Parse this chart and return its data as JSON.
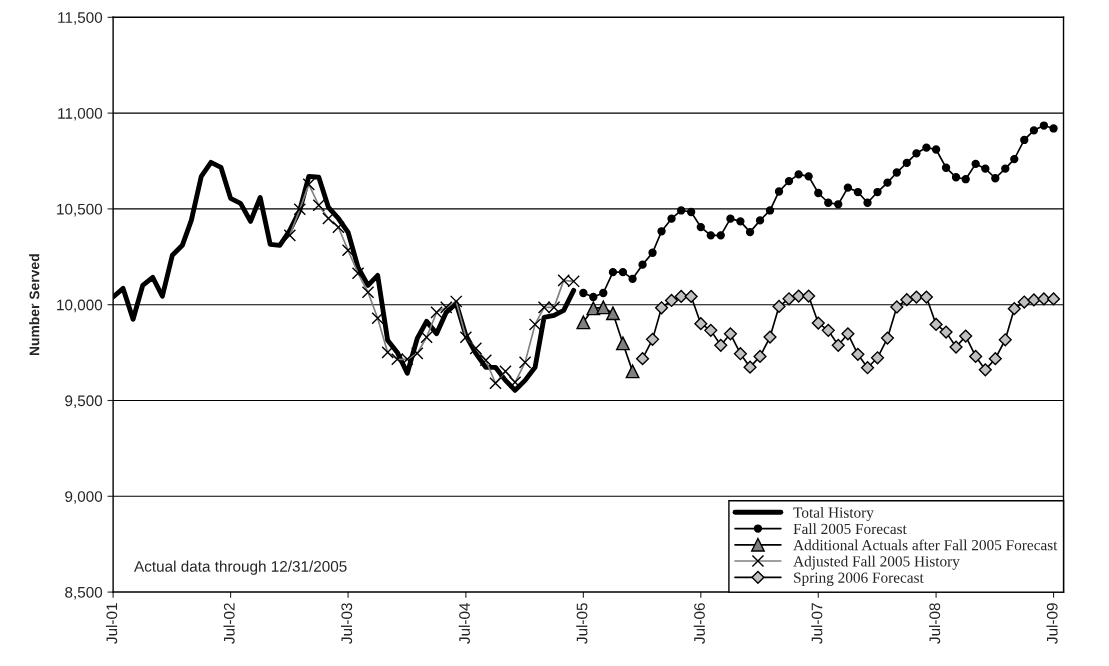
{
  "chart_data": {
    "type": "line",
    "ylabel": "Number Served",
    "ylim": [
      8500,
      11500
    ],
    "yticks": [
      {
        "value": 8500,
        "label": "8,500"
      },
      {
        "value": 9000,
        "label": "9,000"
      },
      {
        "value": 9500,
        "label": "9,500"
      },
      {
        "value": 10000,
        "label": "10,000"
      },
      {
        "value": 10500,
        "label": "10,500"
      },
      {
        "value": 11000,
        "label": "11,000"
      },
      {
        "value": 11500,
        "label": "11,500"
      }
    ],
    "xlim": [
      "2001-07",
      "2009-08"
    ],
    "xticks": [
      {
        "value": "2001-07",
        "label": "Jul-01"
      },
      {
        "value": "2002-07",
        "label": "Jul-02"
      },
      {
        "value": "2003-07",
        "label": "Jul-03"
      },
      {
        "value": "2004-07",
        "label": "Jul-04"
      },
      {
        "value": "2005-07",
        "label": "Jul-05"
      },
      {
        "value": "2006-07",
        "label": "Jul-06"
      },
      {
        "value": "2007-07",
        "label": "Jul-07"
      },
      {
        "value": "2008-07",
        "label": "Jul-08"
      },
      {
        "value": "2009-07",
        "label": "Jul-09"
      }
    ],
    "x": [
      "2001-07",
      "2001-08",
      "2001-09",
      "2001-10",
      "2001-11",
      "2001-12",
      "2002-01",
      "2002-02",
      "2002-03",
      "2002-04",
      "2002-05",
      "2002-06",
      "2002-07",
      "2002-08",
      "2002-09",
      "2002-10",
      "2002-11",
      "2002-12",
      "2003-01",
      "2003-02",
      "2003-03",
      "2003-04",
      "2003-05",
      "2003-06",
      "2003-07",
      "2003-08",
      "2003-09",
      "2003-10",
      "2003-11",
      "2003-12",
      "2004-01",
      "2004-02",
      "2004-03",
      "2004-04",
      "2004-05",
      "2004-06",
      "2004-07",
      "2004-08",
      "2004-09",
      "2004-10",
      "2004-11",
      "2004-12",
      "2005-01",
      "2005-02",
      "2005-03",
      "2005-04",
      "2005-05",
      "2005-06",
      "2005-07",
      "2005-08",
      "2005-09",
      "2005-10",
      "2005-11",
      "2005-12",
      "2006-01",
      "2006-02",
      "2006-03",
      "2006-04",
      "2006-05",
      "2006-06",
      "2006-07",
      "2006-08",
      "2006-09",
      "2006-10",
      "2006-11",
      "2006-12",
      "2007-01",
      "2007-02",
      "2007-03",
      "2007-04",
      "2007-05",
      "2007-06",
      "2007-07",
      "2007-08",
      "2007-09",
      "2007-10",
      "2007-11",
      "2007-12",
      "2008-01",
      "2008-02",
      "2008-03",
      "2008-04",
      "2008-05",
      "2008-06",
      "2008-07",
      "2008-08",
      "2008-09",
      "2008-10",
      "2008-11",
      "2008-12",
      "2009-01",
      "2009-02",
      "2009-03",
      "2009-04",
      "2009-05",
      "2009-06",
      "2009-07"
    ],
    "grid": "y",
    "legend": "bottom right",
    "annotations": [
      "Actual data through 12/31/2005"
    ],
    "series": [
      {
        "name": "Total History",
        "color": "#000000",
        "marker": "none",
        "values": [
          10040,
          10085,
          9924,
          10101,
          10143,
          10044,
          10258,
          10310,
          10440,
          10670,
          10743,
          10717,
          10555,
          10529,
          10435,
          10560,
          10315,
          10310,
          10388,
          10493,
          10670,
          10665,
          10508,
          10450,
          10378,
          10195,
          10101,
          10153,
          9814,
          9751,
          9642,
          9824,
          9913,
          9849,
          9960,
          10007,
          9840,
          9746,
          9673,
          9673,
          9605,
          9553,
          9605,
          9673,
          9934,
          9944,
          9970,
          10075,
          null,
          null,
          null,
          null,
          null,
          null,
          null,
          null,
          null,
          null,
          null,
          null,
          null,
          null,
          null,
          null,
          null,
          null,
          null,
          null,
          null,
          null,
          null,
          null,
          null,
          null,
          null,
          null,
          null,
          null,
          null,
          null,
          null,
          null,
          null,
          null,
          null,
          null,
          null,
          null,
          null,
          null,
          null,
          null,
          null,
          null,
          null,
          null,
          null
        ]
      },
      {
        "name": "Fall 2005 Forecast",
        "color": "#000000",
        "marker": "circle",
        "values": [
          null,
          null,
          null,
          null,
          null,
          null,
          null,
          null,
          null,
          null,
          null,
          null,
          null,
          null,
          null,
          null,
          null,
          null,
          null,
          null,
          null,
          null,
          null,
          null,
          null,
          null,
          null,
          null,
          null,
          null,
          null,
          null,
          null,
          null,
          null,
          null,
          null,
          null,
          null,
          null,
          null,
          null,
          null,
          null,
          null,
          null,
          null,
          null,
          10061,
          10040,
          10061,
          10170,
          10170,
          10135,
          10209,
          10271,
          10383,
          10449,
          10492,
          10484,
          10405,
          10362,
          10362,
          10449,
          10435,
          10379,
          10440,
          10492,
          10591,
          10645,
          10680,
          10670,
          10583,
          10532,
          10524,
          10611,
          10588,
          10532,
          10588,
          10637,
          10690,
          10740,
          10790,
          10820,
          10810,
          10715,
          10665,
          10655,
          10735,
          10710,
          10660,
          10710,
          10760,
          10860,
          10910,
          10935,
          10920
        ]
      },
      {
        "name": "Additional Actuals after Fall 2005 Forecast",
        "color": "#808080",
        "marker": "triangle",
        "values": [
          null,
          null,
          null,
          null,
          null,
          null,
          null,
          null,
          null,
          null,
          null,
          null,
          null,
          null,
          null,
          null,
          null,
          null,
          null,
          null,
          null,
          null,
          null,
          null,
          null,
          null,
          null,
          null,
          null,
          null,
          null,
          null,
          null,
          null,
          null,
          null,
          null,
          null,
          null,
          null,
          null,
          null,
          null,
          null,
          null,
          null,
          null,
          null,
          9908,
          9981,
          9986,
          9955,
          9798,
          9652,
          null,
          null,
          null,
          null,
          null,
          null,
          null,
          null,
          null,
          null,
          null,
          null,
          null,
          null,
          null,
          null,
          null,
          null,
          null,
          null,
          null,
          null,
          null,
          null,
          null,
          null,
          null,
          null,
          null,
          null,
          null,
          null,
          null,
          null,
          null,
          null,
          null,
          null,
          null,
          null,
          null,
          null,
          null
        ]
      },
      {
        "name": "Adjusted Fall 2005 History",
        "color": "#808080",
        "marker": "cross",
        "values": [
          null,
          null,
          null,
          null,
          null,
          null,
          null,
          null,
          null,
          null,
          null,
          null,
          null,
          null,
          null,
          null,
          null,
          null,
          10362,
          10498,
          10628,
          10519,
          10450,
          10404,
          10284,
          10164,
          10065,
          9929,
          9751,
          9715,
          9715,
          9746,
          9830,
          9960,
          9986,
          10017,
          9830,
          9772,
          9710,
          9590,
          9652,
          9595,
          9699,
          9897,
          9986,
          9986,
          10127,
          10122,
          null,
          null,
          null,
          null,
          null,
          null,
          null,
          null,
          null,
          null,
          null,
          null,
          null,
          null,
          null,
          null,
          null,
          null,
          null,
          null,
          null,
          null,
          null,
          null,
          null,
          null,
          null,
          null,
          null,
          null,
          null,
          null,
          null,
          null,
          null,
          null,
          null,
          null,
          null,
          null,
          null,
          null,
          null,
          null,
          null,
          null,
          null,
          null,
          null
        ]
      },
      {
        "name": "Spring 2006 Forecast",
        "color": "#c0c0c0",
        "marker": "diamond",
        "values": [
          null,
          null,
          null,
          null,
          null,
          null,
          null,
          null,
          null,
          null,
          null,
          null,
          null,
          null,
          null,
          null,
          null,
          null,
          null,
          null,
          null,
          null,
          null,
          null,
          null,
          null,
          null,
          null,
          null,
          null,
          null,
          null,
          null,
          null,
          null,
          null,
          null,
          null,
          null,
          null,
          null,
          null,
          null,
          null,
          null,
          null,
          null,
          null,
          null,
          null,
          null,
          null,
          null,
          null,
          9718,
          9819,
          9984,
          10022,
          10043,
          10043,
          9901,
          9866,
          9788,
          9848,
          9744,
          9674,
          9730,
          9831,
          9991,
          10031,
          10045,
          10045,
          9904,
          9866,
          9788,
          9848,
          9741,
          9671,
          9723,
          9826,
          9988,
          10026,
          10040,
          10040,
          9897,
          9857,
          9779,
          9836,
          9730,
          9660,
          9718,
          9817,
          9979,
          10014,
          10025,
          10030,
          10030
        ]
      }
    ]
  }
}
